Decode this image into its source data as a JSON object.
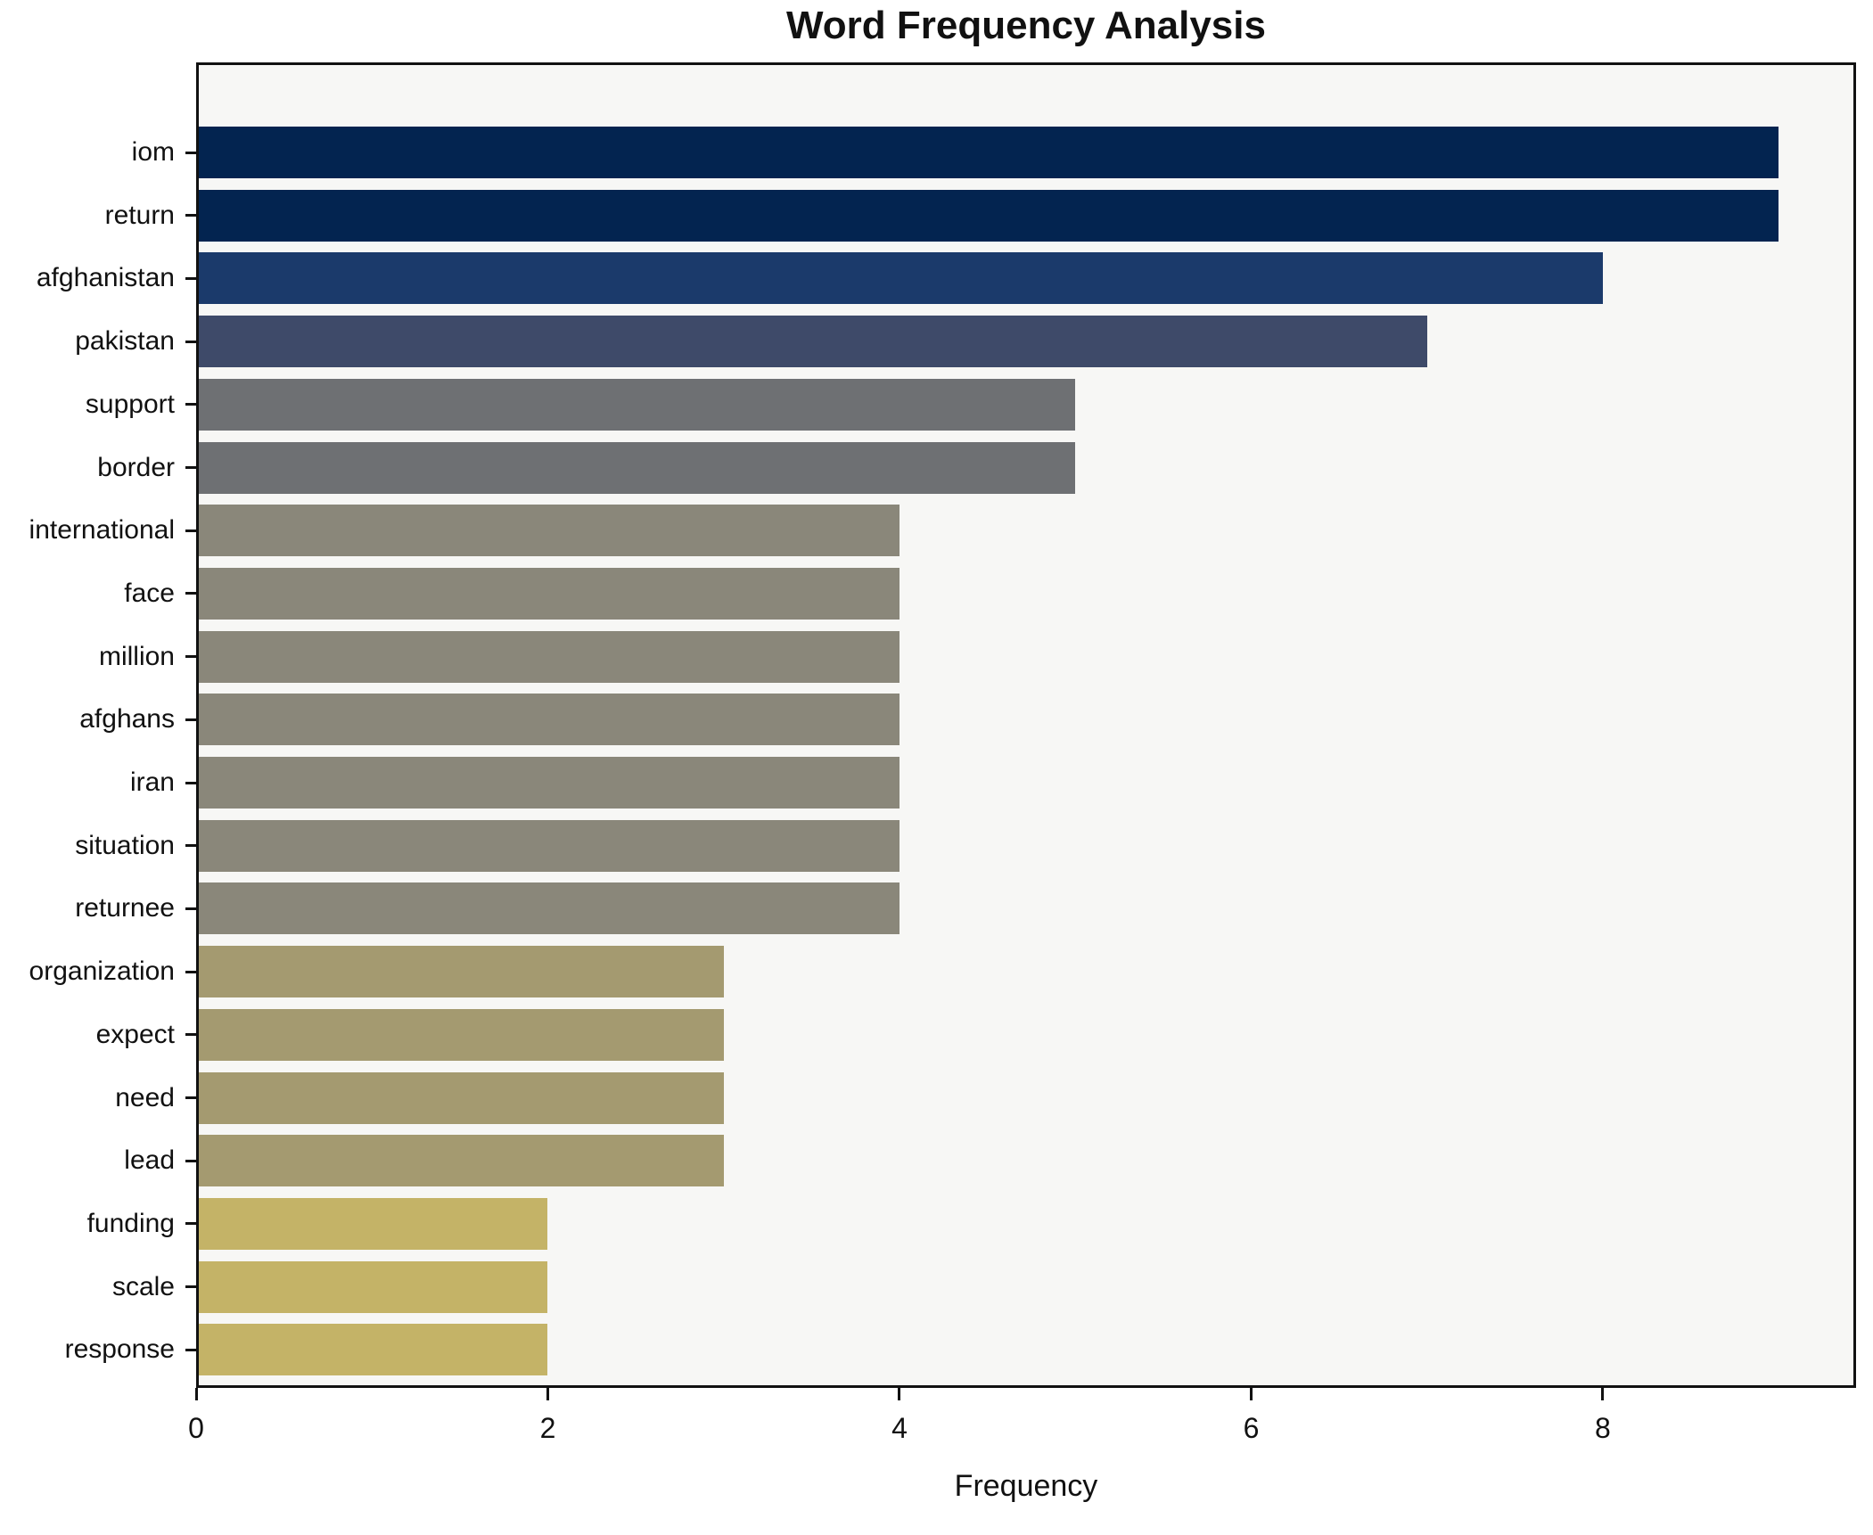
{
  "chart_data": {
    "type": "bar",
    "orientation": "horizontal",
    "title": "Word Frequency Analysis",
    "xlabel": "Frequency",
    "ylabel": "",
    "categories": [
      "iom",
      "return",
      "afghanistan",
      "pakistan",
      "support",
      "border",
      "international",
      "face",
      "million",
      "afghans",
      "iran",
      "situation",
      "returnee",
      "organization",
      "expect",
      "need",
      "lead",
      "funding",
      "scale",
      "response"
    ],
    "values": [
      9,
      9,
      8,
      7,
      5,
      5,
      4,
      4,
      4,
      4,
      4,
      4,
      4,
      3,
      3,
      3,
      3,
      2,
      2,
      2
    ],
    "xlim": [
      0,
      9.44
    ],
    "xticks": [
      0,
      2,
      4,
      6,
      8
    ],
    "grid": false,
    "legend": null,
    "colors_by_value": {
      "9": "#032450",
      "8": "#1b3a6b",
      "7": "#3e4a69",
      "5": "#6e7073",
      "4": "#8a877a",
      "3": "#a49a70",
      "2": "#c4b367"
    },
    "plot_background": "#f7f7f5",
    "figure_background": "#ffffff",
    "spine_color": "#111111",
    "text_color": "#111111"
  }
}
